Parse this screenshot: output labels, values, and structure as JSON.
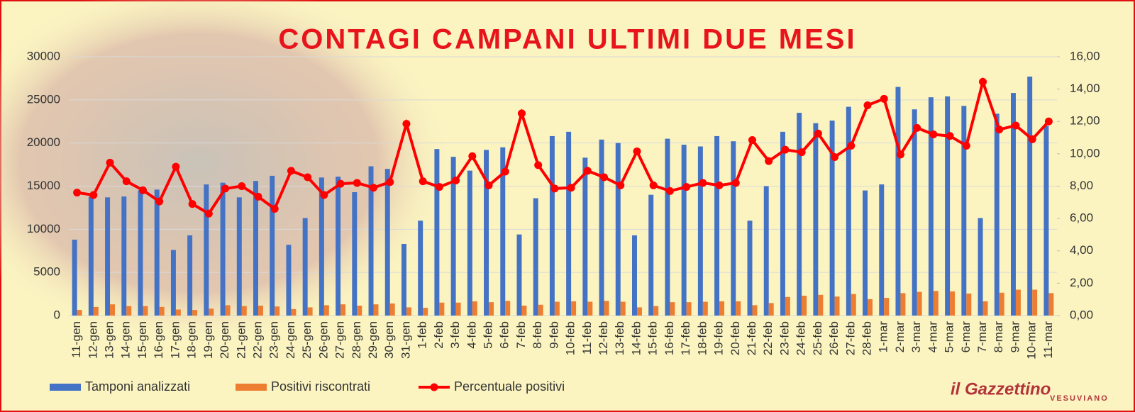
{
  "chart_data": {
    "type": "bar",
    "title": "CONTAGI CAMPANI ULTIMI DUE MESI",
    "logo": "il Gazzettino",
    "logo_subtitle": "VESUVIANO",
    "categories": [
      "11-gen",
      "12-gen",
      "13-gen",
      "14-gen",
      "15-gen",
      "16-gen",
      "17-gen",
      "18-gen",
      "19-gen",
      "20-gen",
      "21-gen",
      "22-gen",
      "23-gen",
      "24-gen",
      "25-gen",
      "26-gen",
      "27-gen",
      "28-gen",
      "29-gen",
      "30-gen",
      "31-gen",
      "1-feb",
      "2-feb",
      "3-feb",
      "4-feb",
      "5-feb",
      "6-feb",
      "7-feb",
      "8-feb",
      "9-feb",
      "10-feb",
      "11-feb",
      "12-feb",
      "13-feb",
      "14-feb",
      "15-feb",
      "16-feb",
      "17-feb",
      "18-feb",
      "19-feb",
      "20-feb",
      "21-feb",
      "22-feb",
      "23-feb",
      "24-feb",
      "25-feb",
      "26-feb",
      "27-feb",
      "28-feb",
      "1-mar",
      "2-mar",
      "3-mar",
      "4-mar",
      "5-mar",
      "6-mar",
      "7-mar",
      "8-mar",
      "9-mar",
      "10-mar",
      "11-mar"
    ],
    "series": [
      {
        "name": "Tamponi analizzati",
        "color": "#4472c4",
        "type": "bar",
        "values": [
          8800,
          13800,
          13700,
          13800,
          14500,
          14600,
          7600,
          9300,
          15200,
          15400,
          13700,
          15600,
          16200,
          8200,
          11300,
          16000,
          16100,
          14300,
          17300,
          17000,
          8300,
          11000,
          19300,
          18400,
          16800,
          19200,
          19500,
          9400,
          13600,
          20800,
          21300,
          18300,
          20400,
          20000,
          9300,
          14000,
          20500,
          19800,
          19600,
          20800,
          20200,
          11000,
          15000,
          21300,
          23500,
          22300,
          22600,
          24200,
          14500,
          15200,
          26500,
          23900,
          25300,
          25400,
          24300,
          11300,
          23400,
          25800,
          27700,
          22000
        ]
      },
      {
        "name": "Positivi riscontrati",
        "color": "#ed7d31",
        "type": "bar",
        "values": [
          650,
          1000,
          1300,
          1100,
          1100,
          1000,
          700,
          650,
          800,
          1200,
          1100,
          1150,
          1050,
          750,
          950,
          1200,
          1300,
          1150,
          1300,
          1400,
          950,
          900,
          1500,
          1500,
          1650,
          1550,
          1700,
          1150,
          1250,
          1600,
          1650,
          1600,
          1700,
          1600,
          950,
          1100,
          1550,
          1550,
          1600,
          1650,
          1650,
          1200,
          1450,
          2150,
          2300,
          2400,
          2200,
          2500,
          1900,
          2050,
          2600,
          2750,
          2850,
          2800,
          2550,
          1650,
          2650,
          3000,
          3000,
          2600
        ]
      },
      {
        "name": "Percentuale positivi",
        "color": "#ff0000",
        "type": "line",
        "axis": "y2",
        "values": [
          7.6,
          7.45,
          9.45,
          8.3,
          7.75,
          7.05,
          9.2,
          6.9,
          6.3,
          7.85,
          8.0,
          7.35,
          6.6,
          8.95,
          8.55,
          7.45,
          8.15,
          8.2,
          7.9,
          8.25,
          11.85,
          8.3,
          7.95,
          8.35,
          9.85,
          8.05,
          8.9,
          12.5,
          9.3,
          7.85,
          7.9,
          8.95,
          8.55,
          8.05,
          10.15,
          8.05,
          7.7,
          7.95,
          8.2,
          8.05,
          8.2,
          10.85,
          9.55,
          10.25,
          10.1,
          11.25,
          9.8,
          10.5,
          13.0,
          13.4,
          9.95,
          11.6,
          11.2,
          11.1,
          10.5,
          14.45,
          11.5,
          11.75,
          10.9,
          12.0
        ]
      }
    ],
    "ylim": [
      0,
      30000
    ],
    "yticks": [
      0,
      5000,
      10000,
      15000,
      20000,
      25000,
      30000
    ],
    "y2lim": [
      0,
      16
    ],
    "y2ticks": [
      {
        "value": 0,
        "label": "0,00"
      },
      {
        "value": 2,
        "label": "2,00"
      },
      {
        "value": 4,
        "label": "4,00"
      },
      {
        "value": 6,
        "label": "6,00"
      },
      {
        "value": 8,
        "label": "8,00"
      },
      {
        "value": 10,
        "label": "10,00"
      },
      {
        "value": 12,
        "label": "12,00"
      },
      {
        "value": 14,
        "label": "14,00"
      },
      {
        "value": 16,
        "label": "16,00"
      }
    ],
    "grid": true,
    "legend": "bottom"
  }
}
